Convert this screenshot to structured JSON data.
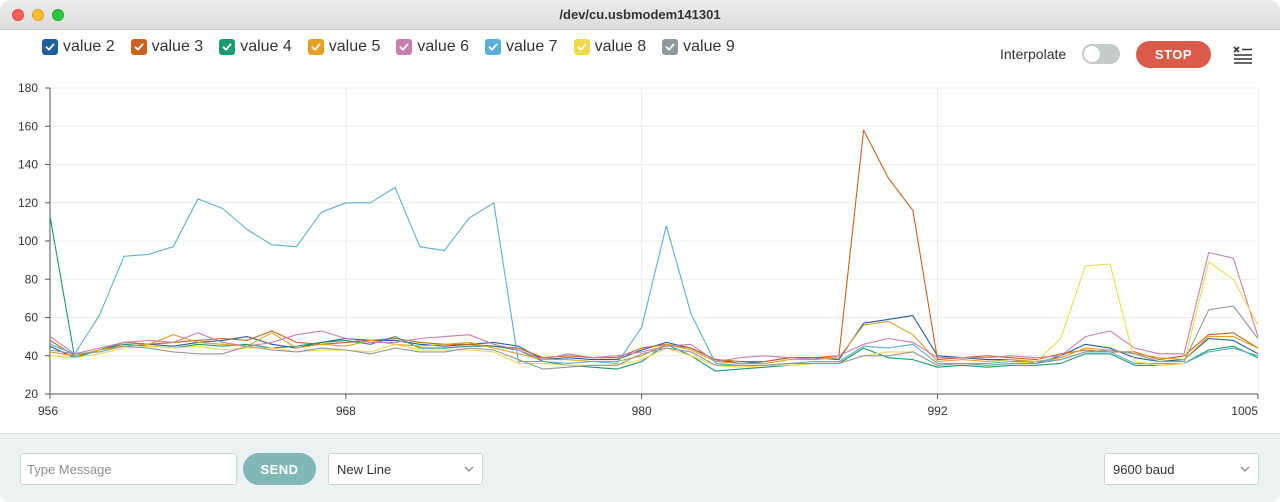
{
  "window": {
    "title": "/dev/cu.usbmodem141301"
  },
  "legend": [
    {
      "label": "value 2",
      "color": "#1f5fa0",
      "checked": true
    },
    {
      "label": "value 3",
      "color": "#c8621e",
      "checked": true
    },
    {
      "label": "value 4",
      "color": "#1a9a6e",
      "checked": true
    },
    {
      "label": "value 5",
      "color": "#e3a024",
      "checked": true
    },
    {
      "label": "value 6",
      "color": "#c77fb0",
      "checked": true
    },
    {
      "label": "value 7",
      "color": "#5aafd8",
      "checked": true
    },
    {
      "label": "value 8",
      "color": "#efd94a",
      "checked": true
    },
    {
      "label": "value 9",
      "color": "#8f9a9a",
      "checked": true
    }
  ],
  "controls": {
    "interpolate_label": "Interpolate",
    "interpolate_on": false,
    "stop_label": "STOP"
  },
  "footer": {
    "message_placeholder": "Type Message",
    "send_label": "SEND",
    "line_ending": "New Line",
    "baud_rate": "9600 baud"
  },
  "chart_data": {
    "type": "line",
    "x": [
      956,
      957,
      958,
      959,
      960,
      961,
      962,
      963,
      964,
      965,
      966,
      967,
      968,
      969,
      970,
      971,
      972,
      973,
      974,
      975,
      976,
      977,
      978,
      979,
      980,
      981,
      982,
      983,
      984,
      985,
      986,
      987,
      988,
      989,
      990,
      991,
      992,
      993,
      994,
      995,
      996,
      997,
      998,
      999,
      1000,
      1001,
      1002,
      1003,
      1004,
      1005
    ],
    "xlim": [
      956,
      1005
    ],
    "ylim": [
      20,
      180
    ],
    "xticks": [
      956,
      968,
      980,
      992,
      1005
    ],
    "yticks": [
      20,
      40,
      60,
      80,
      100,
      120,
      140,
      160,
      180
    ],
    "grid": true,
    "series": [
      {
        "name": "value 2",
        "color": "#1f5fa0",
        "values": [
          45,
          39,
          43,
          47,
          46,
          45,
          47,
          48,
          50,
          46,
          44,
          47,
          49,
          48,
          48,
          46,
          45,
          46,
          47,
          45,
          38,
          39,
          38,
          38,
          43,
          47,
          44,
          38,
          36,
          37,
          39,
          39,
          38,
          57,
          59,
          61,
          40,
          39,
          38,
          38,
          36,
          40,
          46,
          44,
          39,
          37,
          38,
          49,
          48,
          41
        ]
      },
      {
        "name": "value 3",
        "color": "#c8621e",
        "values": [
          48,
          40,
          43,
          47,
          46,
          47,
          48,
          49,
          48,
          53,
          47,
          46,
          47,
          48,
          49,
          47,
          46,
          46,
          45,
          44,
          39,
          40,
          39,
          39,
          44,
          46,
          44,
          38,
          37,
          37,
          39,
          39,
          40,
          158,
          133,
          116,
          38,
          39,
          40,
          39,
          38,
          41,
          43,
          42,
          42,
          38,
          40,
          51,
          52,
          44
        ]
      },
      {
        "name": "value 4",
        "color": "#1a9a6e",
        "values": [
          113,
          39,
          43,
          46,
          45,
          44,
          46,
          45,
          46,
          44,
          45,
          47,
          48,
          46,
          50,
          44,
          44,
          45,
          45,
          43,
          37,
          35,
          34,
          33,
          37,
          46,
          40,
          32,
          33,
          34,
          35,
          36,
          36,
          44,
          39,
          38,
          34,
          35,
          34,
          35,
          35,
          36,
          41,
          41,
          35,
          35,
          36,
          43,
          45,
          39
        ]
      },
      {
        "name": "value 5",
        "color": "#e3a024",
        "values": [
          42,
          40,
          43,
          45,
          46,
          51,
          47,
          46,
          45,
          52,
          44,
          46,
          45,
          48,
          46,
          45,
          46,
          47,
          44,
          41,
          38,
          38,
          37,
          37,
          40,
          46,
          43,
          37,
          36,
          36,
          38,
          38,
          39,
          56,
          58,
          51,
          37,
          38,
          37,
          38,
          37,
          39,
          44,
          43,
          41,
          39,
          38,
          50,
          50,
          44
        ]
      },
      {
        "name": "value 6",
        "color": "#c77fb0",
        "values": [
          50,
          41,
          44,
          47,
          48,
          47,
          52,
          47,
          45,
          47,
          51,
          53,
          49,
          47,
          47,
          49,
          50,
          51,
          46,
          43,
          38,
          41,
          39,
          40,
          42,
          45,
          46,
          37,
          39,
          40,
          39,
          38,
          40,
          46,
          49,
          47,
          39,
          39,
          39,
          40,
          39,
          40,
          50,
          53,
          44,
          41,
          41,
          94,
          91,
          50
        ]
      },
      {
        "name": "value 7",
        "color": "#5aafd8",
        "values": [
          46,
          41,
          61,
          92,
          93,
          97,
          122,
          117,
          106,
          98,
          97,
          115,
          120,
          120,
          128,
          97,
          95,
          112,
          120,
          37,
          37,
          36,
          37,
          36,
          55,
          108,
          62,
          36,
          35,
          35,
          36,
          37,
          37,
          45,
          44,
          46,
          36,
          36,
          36,
          37,
          37,
          38,
          42,
          42,
          36,
          36,
          36,
          42,
          44,
          40
        ]
      },
      {
        "name": "value 8",
        "color": "#efd94a",
        "values": [
          40,
          39,
          41,
          44,
          45,
          44,
          45,
          43,
          44,
          44,
          42,
          43,
          43,
          42,
          46,
          43,
          43,
          43,
          42,
          36,
          36,
          35,
          35,
          35,
          38,
          44,
          40,
          35,
          34,
          35,
          35,
          36,
          36,
          40,
          42,
          42,
          35,
          36,
          35,
          36,
          37,
          49,
          87,
          88,
          37,
          35,
          36,
          89,
          80,
          56
        ]
      },
      {
        "name": "value 9",
        "color": "#8f9a9a",
        "values": [
          43,
          41,
          42,
          45,
          44,
          42,
          41,
          41,
          45,
          43,
          42,
          44,
          43,
          41,
          44,
          42,
          42,
          44,
          43,
          38,
          33,
          34,
          35,
          35,
          41,
          44,
          42,
          35,
          35,
          35,
          36,
          36,
          36,
          40,
          40,
          42,
          35,
          36,
          35,
          36,
          36,
          38,
          42,
          43,
          41,
          37,
          37,
          64,
          66,
          49
        ]
      }
    ]
  }
}
